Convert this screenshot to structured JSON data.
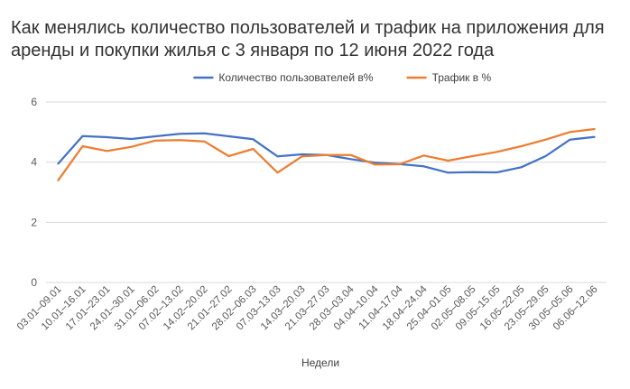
{
  "chart_data": {
    "type": "line",
    "title_lines": [
      "Как менялись количество пользователей и трафик на приложения для",
      "аренды и покупки жилья с 3 января по 12 июня 2022 года"
    ],
    "xlabel": "Недели",
    "ylabel": "",
    "ylim": [
      0,
      6
    ],
    "yticks": [
      0,
      2,
      4,
      6
    ],
    "grid": "horizontal",
    "legend_position": "top-center",
    "categories": [
      "03.01–09.01",
      "10.01–16.01",
      "17.01–23.01",
      "24.01–30.01",
      "31.01–06.02",
      "07.02–13.02",
      "14.02–20.02",
      "21.01–27.02",
      "28.02–06.03",
      "07.03–13.03",
      "14.03–20.03",
      "21.03–27.03",
      "28.03–03.04",
      "04.04–10.04",
      "11.04–17.04",
      "18.04–24.04",
      "25.04–01.05",
      "02.05–08.05",
      "09.05–15.05",
      "16.05–22.05",
      "23.05–29.05",
      "30.05–05.06",
      "06.06–12.06"
    ],
    "series": [
      {
        "name": "Количество пользователей в%",
        "color": "#4472C4",
        "values": [
          3.95,
          4.87,
          4.83,
          4.77,
          4.86,
          4.94,
          4.96,
          4.86,
          4.76,
          4.19,
          4.26,
          4.24,
          4.1,
          3.98,
          3.94,
          3.86,
          3.65,
          3.67,
          3.66,
          3.83,
          4.2,
          4.75,
          4.84
        ]
      },
      {
        "name": "Трафик в %",
        "color": "#ED7D31",
        "values": [
          3.4,
          4.53,
          4.37,
          4.51,
          4.72,
          4.73,
          4.69,
          4.2,
          4.44,
          3.65,
          4.19,
          4.24,
          4.24,
          3.92,
          3.93,
          4.22,
          4.05,
          4.2,
          4.34,
          4.53,
          4.75,
          5.0,
          5.1
        ]
      }
    ]
  }
}
